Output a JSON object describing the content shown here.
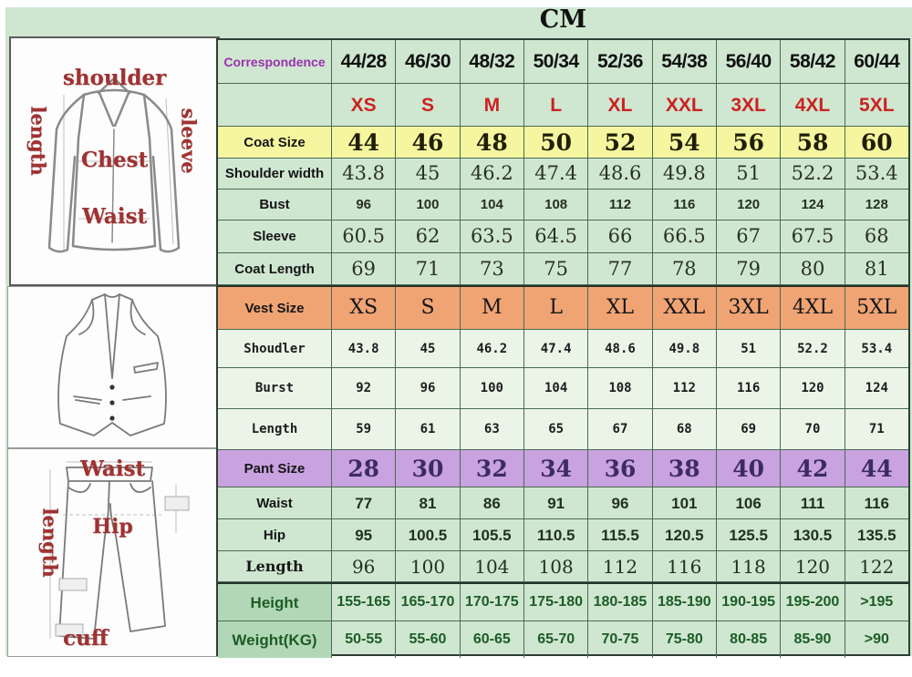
{
  "title": "CM",
  "colors": {
    "page_green": "#cfe7d1",
    "yellow_row": "#f6f6a0",
    "orange_row": "#f0a474",
    "purple_row": "#c9a2e0",
    "vest_row_bg": "#eaf4e7",
    "body_label_bg": "#b2d7b6",
    "red_text": "#cc2222",
    "purple_text": "#9b30b0",
    "pant_value_text": "#3c2b63",
    "dark_green_text": "#1d5c26",
    "grid_line": "#4a6a52",
    "diagram_label_red": "#a03232"
  },
  "diagrams": {
    "jacket": {
      "shoulder_label": "shoulder",
      "length_label": "length",
      "sleeve_label": "sleeve",
      "chest_label": "Chest",
      "waist_label": "Waist"
    },
    "pants": {
      "waist_label": "Waist",
      "length_label": "length",
      "hip_label": "Hip",
      "cuff_label": "cuff"
    }
  },
  "table": {
    "rows": [
      {
        "id": "correspondence",
        "kind": "header",
        "label": "Correspondence",
        "values": [
          "44/28",
          "46/30",
          "48/32",
          "50/34",
          "52/36",
          "54/38",
          "56/40",
          "58/42",
          "60/44"
        ]
      },
      {
        "id": "letter-sizes",
        "kind": "letters",
        "label": "",
        "values": [
          "XS",
          "S",
          "M",
          "L",
          "XL",
          "XXL",
          "3XL",
          "4XL",
          "5XL"
        ]
      },
      {
        "id": "coat-size",
        "kind": "coat-size",
        "label": "Coat Size",
        "values": [
          "44",
          "46",
          "48",
          "50",
          "52",
          "54",
          "56",
          "58",
          "60"
        ]
      },
      {
        "id": "shoulder-width",
        "kind": "coat",
        "label": "Shoulder width",
        "values": [
          "43.8",
          "45",
          "46.2",
          "47.4",
          "48.6",
          "49.8",
          "51",
          "52.2",
          "53.4"
        ]
      },
      {
        "id": "bust",
        "kind": "coat-bold",
        "label": "Bust",
        "values": [
          "96",
          "100",
          "104",
          "108",
          "112",
          "116",
          "120",
          "124",
          "128"
        ]
      },
      {
        "id": "sleeve",
        "kind": "coat",
        "label": "Sleeve",
        "values": [
          "60.5",
          "62",
          "63.5",
          "64.5",
          "66",
          "66.5",
          "67",
          "67.5",
          "68"
        ]
      },
      {
        "id": "coat-length",
        "kind": "coat",
        "label": "Coat Length",
        "values": [
          "69",
          "71",
          "73",
          "75",
          "77",
          "78",
          "79",
          "80",
          "81"
        ]
      },
      {
        "id": "vest-size",
        "kind": "vest-size",
        "label": "Vest Size",
        "values": [
          "XS",
          "S",
          "M",
          "L",
          "XL",
          "XXL",
          "3XL",
          "4XL",
          "5XL"
        ]
      },
      {
        "id": "vest-shoulder",
        "kind": "vest",
        "label": "Shoudler",
        "values": [
          "43.8",
          "45",
          "46.2",
          "47.4",
          "48.6",
          "49.8",
          "51",
          "52.2",
          "53.4"
        ]
      },
      {
        "id": "vest-bust",
        "kind": "vest",
        "label": "Burst",
        "values": [
          "92",
          "96",
          "100",
          "104",
          "108",
          "112",
          "116",
          "120",
          "124"
        ]
      },
      {
        "id": "vest-length",
        "kind": "vest",
        "label": "Length",
        "values": [
          "59",
          "61",
          "63",
          "65",
          "67",
          "68",
          "69",
          "70",
          "71"
        ]
      },
      {
        "id": "pant-size",
        "kind": "pant-size",
        "label": "Pant Size",
        "values": [
          "28",
          "30",
          "32",
          "34",
          "36",
          "38",
          "40",
          "42",
          "44"
        ]
      },
      {
        "id": "pant-waist",
        "kind": "pant-bold",
        "label": "Waist",
        "values": [
          "77",
          "81",
          "86",
          "91",
          "96",
          "101",
          "106",
          "111",
          "116"
        ]
      },
      {
        "id": "pant-hip",
        "kind": "pant-bold",
        "label": "Hip",
        "values": [
          "95",
          "100.5",
          "105.5",
          "110.5",
          "115.5",
          "120.5",
          "125.5",
          "130.5",
          "135.5"
        ]
      },
      {
        "id": "pant-length",
        "kind": "pant",
        "label": "Length",
        "values": [
          "96",
          "100",
          "104",
          "108",
          "112",
          "116",
          "118",
          "120",
          "122"
        ]
      },
      {
        "id": "height",
        "kind": "body",
        "label": "Height",
        "values": [
          "155-165",
          "165-170",
          "170-175",
          "175-180",
          "180-185",
          "185-190",
          "190-195",
          "195-200",
          ">195"
        ]
      },
      {
        "id": "weight",
        "kind": "body",
        "label": "Weight(KG)",
        "values": [
          "50-55",
          "55-60",
          "60-65",
          "65-70",
          "70-75",
          "75-80",
          "80-85",
          "85-90",
          ">90"
        ]
      }
    ]
  }
}
